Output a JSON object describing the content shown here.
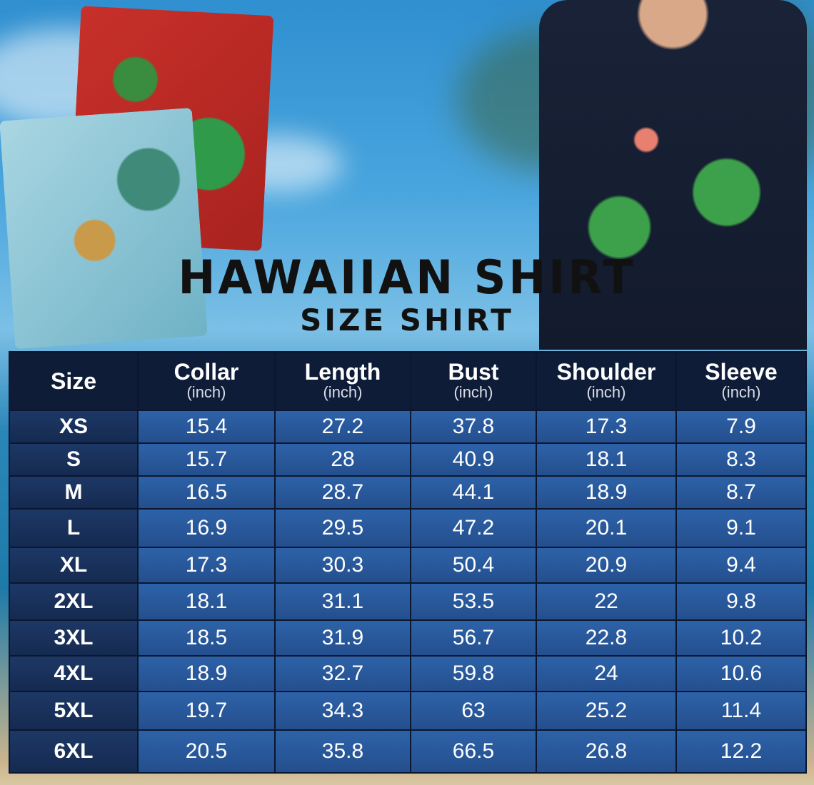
{
  "title": "HAWAIIAN SHIRT",
  "subtitle": "SIZE SHIRT",
  "table": {
    "headers": [
      {
        "label": "Size",
        "unit": ""
      },
      {
        "label": "Collar",
        "unit": "(inch)"
      },
      {
        "label": "Length",
        "unit": "(inch)"
      },
      {
        "label": "Bust",
        "unit": "(inch)"
      },
      {
        "label": "Shoulder",
        "unit": "(inch)"
      },
      {
        "label": "Sleeve",
        "unit": "(inch)"
      }
    ],
    "rows": [
      [
        "XS",
        "15.4",
        "27.2",
        "37.8",
        "17.3",
        "7.9"
      ],
      [
        "S",
        "15.7",
        "28",
        "40.9",
        "18.1",
        "8.3"
      ],
      [
        "M",
        "16.5",
        "28.7",
        "44.1",
        "18.9",
        "8.7"
      ],
      [
        "L",
        "16.9",
        "29.5",
        "47.2",
        "20.1",
        "9.1"
      ],
      [
        "XL",
        "17.3",
        "30.3",
        "50.4",
        "20.9",
        "9.4"
      ],
      [
        "2XL",
        "18.1",
        "31.1",
        "53.5",
        "22",
        "9.8"
      ],
      [
        "3XL",
        "18.5",
        "31.9",
        "56.7",
        "22.8",
        "10.2"
      ],
      [
        "4XL",
        "18.9",
        "32.7",
        "59.8",
        "24",
        "10.6"
      ],
      [
        "5XL",
        "19.7",
        "34.3",
        "63",
        "25.2",
        "11.4"
      ],
      [
        "6XL",
        "20.5",
        "35.8",
        "66.5",
        "26.8",
        "12.2"
      ]
    ]
  }
}
